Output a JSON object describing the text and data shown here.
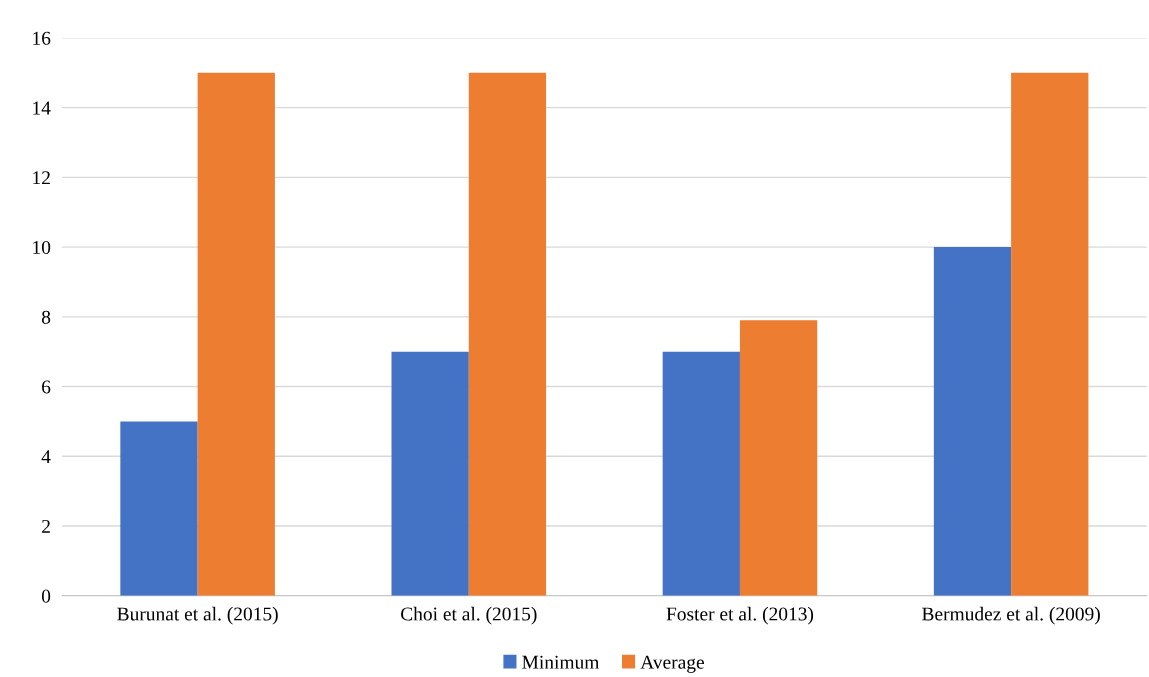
{
  "chart_data": {
    "type": "bar",
    "categories": [
      "Burunat et al. (2015)",
      "Choi et al. (2015)",
      "Foster et al. (2013)",
      "Bermudez et al. (2009)"
    ],
    "series": [
      {
        "name": "Minimum",
        "color": "#4472c4",
        "values": [
          5,
          7,
          7,
          10
        ]
      },
      {
        "name": "Average",
        "color": "#ed7d31",
        "values": [
          15,
          15,
          7.9,
          15
        ]
      }
    ],
    "ylim": [
      0,
      16
    ],
    "yticks": [
      0,
      2,
      4,
      6,
      8,
      10,
      12,
      14,
      16
    ],
    "grid": "y",
    "legend": "bottom"
  }
}
